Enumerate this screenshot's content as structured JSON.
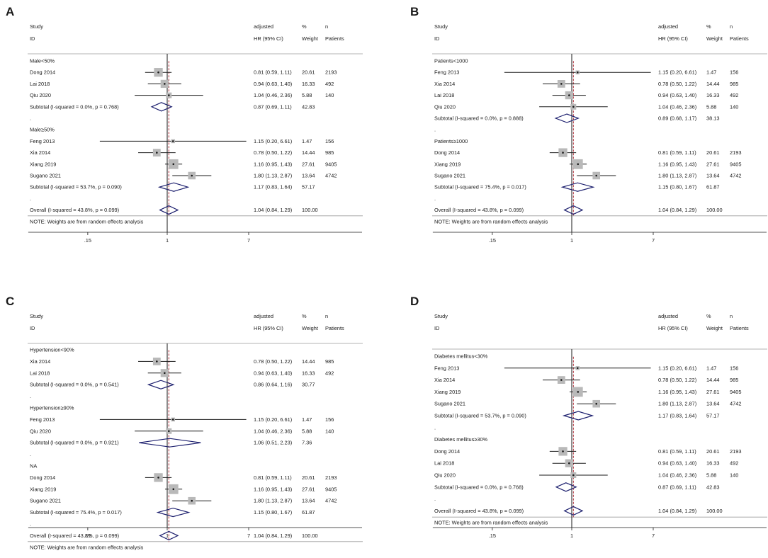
{
  "chart_data": [
    {
      "type": "forest",
      "panel_label": "A",
      "header": {
        "col_study": [
          "Study",
          "ID"
        ],
        "col_es": [
          "adjusted",
          "HR (95% CI)"
        ],
        "col_weight": [
          "%",
          "Weight"
        ],
        "col_n": [
          "n",
          "Patients"
        ]
      },
      "x_scale": "log",
      "x_ticks": [
        ".15",
        "1",
        "7"
      ],
      "null_line": 1,
      "overall_value": 1.04,
      "rows": [
        {
          "kind": "group",
          "label": "Male<50%"
        },
        {
          "kind": "study",
          "label": "Dong 2014",
          "hr": 0.81,
          "lo": 0.59,
          "hi": 1.11,
          "ci_text": "0.81 (0.59, 1.11)",
          "weight": "20.61",
          "n": "2193"
        },
        {
          "kind": "study",
          "label": "Lai 2018",
          "hr": 0.94,
          "lo": 0.63,
          "hi": 1.4,
          "ci_text": "0.94 (0.63, 1.40)",
          "weight": "16.33",
          "n": "492"
        },
        {
          "kind": "study",
          "label": "Qiu 2020",
          "hr": 1.04,
          "lo": 0.46,
          "hi": 2.36,
          "ci_text": "1.04 (0.46, 2.36)",
          "weight": "5.88",
          "n": "140"
        },
        {
          "kind": "subtotal",
          "label": "Subtotal  (I-squared = 0.0%, p = 0.768)",
          "hr": 0.87,
          "lo": 0.69,
          "hi": 1.11,
          "ci_text": "0.87 (0.69, 1.11)",
          "weight": "42.83"
        },
        {
          "kind": "dot",
          "label": "."
        },
        {
          "kind": "group",
          "label": "Male≥50%"
        },
        {
          "kind": "study",
          "label": "Feng 2013",
          "hr": 1.15,
          "lo": 0.2,
          "hi": 6.61,
          "ci_text": "1.15 (0.20, 6.61)",
          "weight": "1.47",
          "n": "156"
        },
        {
          "kind": "study",
          "label": "Xia 2014",
          "hr": 0.78,
          "lo": 0.5,
          "hi": 1.22,
          "ci_text": "0.78 (0.50, 1.22)",
          "weight": "14.44",
          "n": "985"
        },
        {
          "kind": "study",
          "label": "Xiang 2019",
          "hr": 1.16,
          "lo": 0.95,
          "hi": 1.43,
          "ci_text": "1.16 (0.95, 1.43)",
          "weight": "27.61",
          "n": "9405"
        },
        {
          "kind": "study",
          "label": "Sugano 2021",
          "hr": 1.8,
          "lo": 1.13,
          "hi": 2.87,
          "ci_text": "1.80 (1.13, 2.87)",
          "weight": "13.64",
          "n": "4742"
        },
        {
          "kind": "subtotal",
          "label": "Subtotal  (I-squared = 53.7%, p = 0.090)",
          "hr": 1.17,
          "lo": 0.83,
          "hi": 1.64,
          "ci_text": "1.17 (0.83, 1.64)",
          "weight": "57.17"
        },
        {
          "kind": "dot",
          "label": "."
        },
        {
          "kind": "overall",
          "label": "Overall  (I-squared = 43.8%, p = 0.099)",
          "hr": 1.04,
          "lo": 0.84,
          "hi": 1.29,
          "ci_text": "1.04 (0.84, 1.29)",
          "weight": "100.00"
        },
        {
          "kind": "note",
          "label": "NOTE: Weights are from random effects analysis"
        }
      ]
    },
    {
      "type": "forest",
      "panel_label": "B",
      "header": {
        "col_study": [
          "Study",
          "ID"
        ],
        "col_es": [
          "adjusted",
          "HR (95% CI)"
        ],
        "col_weight": [
          "%",
          "Weight"
        ],
        "col_n": [
          "n",
          "Patients"
        ]
      },
      "x_scale": "log",
      "x_ticks": [
        ".15",
        "1",
        "7"
      ],
      "null_line": 1,
      "overall_value": 1.04,
      "rows": [
        {
          "kind": "group",
          "label": "Patients<1000"
        },
        {
          "kind": "study",
          "label": "Feng 2013",
          "hr": 1.15,
          "lo": 0.2,
          "hi": 6.61,
          "ci_text": "1.15 (0.20, 6.61)",
          "weight": "1.47",
          "n": "156"
        },
        {
          "kind": "study",
          "label": "Xia 2014",
          "hr": 0.78,
          "lo": 0.5,
          "hi": 1.22,
          "ci_text": "0.78 (0.50, 1.22)",
          "weight": "14.44",
          "n": "985"
        },
        {
          "kind": "study",
          "label": "Lai 2018",
          "hr": 0.94,
          "lo": 0.63,
          "hi": 1.4,
          "ci_text": "0.94 (0.63, 1.40)",
          "weight": "16.33",
          "n": "492"
        },
        {
          "kind": "study",
          "label": "Qiu 2020",
          "hr": 1.04,
          "lo": 0.46,
          "hi": 2.36,
          "ci_text": "1.04 (0.46, 2.36)",
          "weight": "5.88",
          "n": "140"
        },
        {
          "kind": "subtotal",
          "label": "Subtotal  (I-squared = 0.0%, p = 0.888)",
          "hr": 0.89,
          "lo": 0.68,
          "hi": 1.17,
          "ci_text": "0.89 (0.68, 1.17)",
          "weight": "38.13"
        },
        {
          "kind": "dot",
          "label": "."
        },
        {
          "kind": "group",
          "label": "Patients≥1000"
        },
        {
          "kind": "study",
          "label": "Dong 2014",
          "hr": 0.81,
          "lo": 0.59,
          "hi": 1.11,
          "ci_text": "0.81 (0.59, 1.11)",
          "weight": "20.61",
          "n": "2193"
        },
        {
          "kind": "study",
          "label": "Xiang 2019",
          "hr": 1.16,
          "lo": 0.95,
          "hi": 1.43,
          "ci_text": "1.16 (0.95, 1.43)",
          "weight": "27.61",
          "n": "9405"
        },
        {
          "kind": "study",
          "label": "Sugano 2021",
          "hr": 1.8,
          "lo": 1.13,
          "hi": 2.87,
          "ci_text": "1.80 (1.13, 2.87)",
          "weight": "13.64",
          "n": "4742"
        },
        {
          "kind": "subtotal",
          "label": "Subtotal  (I-squared = 75.4%, p = 0.017)",
          "hr": 1.15,
          "lo": 0.8,
          "hi": 1.67,
          "ci_text": "1.15 (0.80, 1.67)",
          "weight": "61.87"
        },
        {
          "kind": "dot",
          "label": "."
        },
        {
          "kind": "overall",
          "label": "Overall  (I-squared = 43.8%, p = 0.099)",
          "hr": 1.04,
          "lo": 0.84,
          "hi": 1.29,
          "ci_text": "1.04 (0.84, 1.29)",
          "weight": "100.00"
        },
        {
          "kind": "note",
          "label": "NOTE: Weights are from random effects analysis"
        }
      ]
    },
    {
      "type": "forest",
      "panel_label": "C",
      "header": {
        "col_study": [
          "Study",
          "ID"
        ],
        "col_es": [
          "adjusted",
          "HR (95% CI)"
        ],
        "col_weight": [
          "%",
          "Weight"
        ],
        "col_n": [
          "n",
          "Patients"
        ]
      },
      "x_scale": "log",
      "x_ticks": [
        ".15",
        "1",
        "7"
      ],
      "null_line": 1,
      "overall_value": 1.04,
      "rows": [
        {
          "kind": "group",
          "label": "Hypertension<90%"
        },
        {
          "kind": "study",
          "label": "Xia 2014",
          "hr": 0.78,
          "lo": 0.5,
          "hi": 1.22,
          "ci_text": "0.78 (0.50, 1.22)",
          "weight": "14.44",
          "n": "985"
        },
        {
          "kind": "study",
          "label": "Lai 2018",
          "hr": 0.94,
          "lo": 0.63,
          "hi": 1.4,
          "ci_text": "0.94 (0.63, 1.40)",
          "weight": "16.33",
          "n": "492"
        },
        {
          "kind": "subtotal",
          "label": "Subtotal  (I-squared = 0.0%, p = 0.541)",
          "hr": 0.86,
          "lo": 0.64,
          "hi": 1.16,
          "ci_text": "0.86 (0.64, 1.16)",
          "weight": "30.77"
        },
        {
          "kind": "dot",
          "label": "."
        },
        {
          "kind": "group",
          "label": "Hypertension≥90%"
        },
        {
          "kind": "study",
          "label": "Feng 2013",
          "hr": 1.15,
          "lo": 0.2,
          "hi": 6.61,
          "ci_text": "1.15 (0.20, 6.61)",
          "weight": "1.47",
          "n": "156"
        },
        {
          "kind": "study",
          "label": "Qiu 2020",
          "hr": 1.04,
          "lo": 0.46,
          "hi": 2.36,
          "ci_text": "1.04 (0.46, 2.36)",
          "weight": "5.88",
          "n": "140"
        },
        {
          "kind": "subtotal",
          "label": "Subtotal  (I-squared = 0.0%, p = 0.921)",
          "hr": 1.06,
          "lo": 0.51,
          "hi": 2.23,
          "ci_text": "1.06 (0.51, 2.23)",
          "weight": "7.36"
        },
        {
          "kind": "dot",
          "label": "."
        },
        {
          "kind": "group",
          "label": "NA"
        },
        {
          "kind": "study",
          "label": "Dong 2014",
          "hr": 0.81,
          "lo": 0.59,
          "hi": 1.11,
          "ci_text": "0.81 (0.59, 1.11)",
          "weight": "20.61",
          "n": "2193"
        },
        {
          "kind": "study",
          "label": "Xiang 2019",
          "hr": 1.16,
          "lo": 0.95,
          "hi": 1.43,
          "ci_text": "1.16 (0.95, 1.43)",
          "weight": "27.61",
          "n": "9405"
        },
        {
          "kind": "study",
          "label": "Sugano 2021",
          "hr": 1.8,
          "lo": 1.13,
          "hi": 2.87,
          "ci_text": "1.80 (1.13, 2.87)",
          "weight": "13.64",
          "n": "4742"
        },
        {
          "kind": "subtotal",
          "label": "Subtotal  (I-squared = 75.4%, p = 0.017)",
          "hr": 1.15,
          "lo": 0.8,
          "hi": 1.67,
          "ci_text": "1.15 (0.80, 1.67)",
          "weight": "61.87"
        },
        {
          "kind": "dot",
          "label": "."
        },
        {
          "kind": "overall",
          "label": "Overall  (I-squared = 43.8%, p = 0.099)",
          "hr": 1.04,
          "lo": 0.84,
          "hi": 1.29,
          "ci_text": "1.04 (0.84, 1.29)",
          "weight": "100.00"
        },
        {
          "kind": "note",
          "label": "NOTE: Weights are from random effects analysis"
        }
      ]
    },
    {
      "type": "forest",
      "panel_label": "D",
      "header": {
        "col_study": [
          "Study",
          "ID"
        ],
        "col_es": [
          "adjusted",
          "HR (95% CI)"
        ],
        "col_weight": [
          "%",
          "Weight"
        ],
        "col_n": [
          "n",
          "Patients"
        ]
      },
      "x_scale": "log",
      "x_ticks": [
        ".15",
        "1",
        "7"
      ],
      "null_line": 1,
      "overall_value": 1.04,
      "rows": [
        {
          "kind": "group",
          "label": "Diabetes mellitus<30%"
        },
        {
          "kind": "study",
          "label": "Feng 2013",
          "hr": 1.15,
          "lo": 0.2,
          "hi": 6.61,
          "ci_text": "1.15 (0.20, 6.61)",
          "weight": "1.47",
          "n": "156"
        },
        {
          "kind": "study",
          "label": "Xia 2014",
          "hr": 0.78,
          "lo": 0.5,
          "hi": 1.22,
          "ci_text": "0.78 (0.50, 1.22)",
          "weight": "14.44",
          "n": "985"
        },
        {
          "kind": "study",
          "label": "Xiang 2019",
          "hr": 1.16,
          "lo": 0.95,
          "hi": 1.43,
          "ci_text": "1.16 (0.95, 1.43)",
          "weight": "27.61",
          "n": "9405"
        },
        {
          "kind": "study",
          "label": "Sugano 2021",
          "hr": 1.8,
          "lo": 1.13,
          "hi": 2.87,
          "ci_text": "1.80 (1.13, 2.87)",
          "weight": "13.64",
          "n": "4742"
        },
        {
          "kind": "subtotal",
          "label": "Subtotal  (I-squared = 53.7%, p = 0.090)",
          "hr": 1.17,
          "lo": 0.83,
          "hi": 1.64,
          "ci_text": "1.17 (0.83, 1.64)",
          "weight": "57.17"
        },
        {
          "kind": "dot",
          "label": "."
        },
        {
          "kind": "group",
          "label": "Diabetes mellitus≥30%"
        },
        {
          "kind": "study",
          "label": "Dong 2014",
          "hr": 0.81,
          "lo": 0.59,
          "hi": 1.11,
          "ci_text": "0.81 (0.59, 1.11)",
          "weight": "20.61",
          "n": "2193"
        },
        {
          "kind": "study",
          "label": "Lai 2018",
          "hr": 0.94,
          "lo": 0.63,
          "hi": 1.4,
          "ci_text": "0.94 (0.63, 1.40)",
          "weight": "16.33",
          "n": "492"
        },
        {
          "kind": "study",
          "label": "Qiu 2020",
          "hr": 1.04,
          "lo": 0.46,
          "hi": 2.36,
          "ci_text": "1.04 (0.46, 2.36)",
          "weight": "5.88",
          "n": "140"
        },
        {
          "kind": "subtotal",
          "label": "Subtotal  (I-squared = 0.0%, p = 0.768)",
          "hr": 0.87,
          "lo": 0.69,
          "hi": 1.11,
          "ci_text": "0.87 (0.69, 1.11)",
          "weight": "42.83"
        },
        {
          "kind": "dot",
          "label": "."
        },
        {
          "kind": "overall",
          "label": "Overall  (I-squared = 43.8%, p = 0.099)",
          "hr": 1.04,
          "lo": 0.84,
          "hi": 1.29,
          "ci_text": "1.04 (0.84, 1.29)",
          "weight": "100.00"
        },
        {
          "kind": "note",
          "label": "NOTE: Weights are from random effects analysis"
        }
      ]
    }
  ],
  "colors": {
    "ink": "#1a1a1a",
    "box": "#b9b9b9",
    "diamond": "#1c1f6e",
    "overall_line": "#b0303a",
    "rule": "#9a9a9a"
  }
}
